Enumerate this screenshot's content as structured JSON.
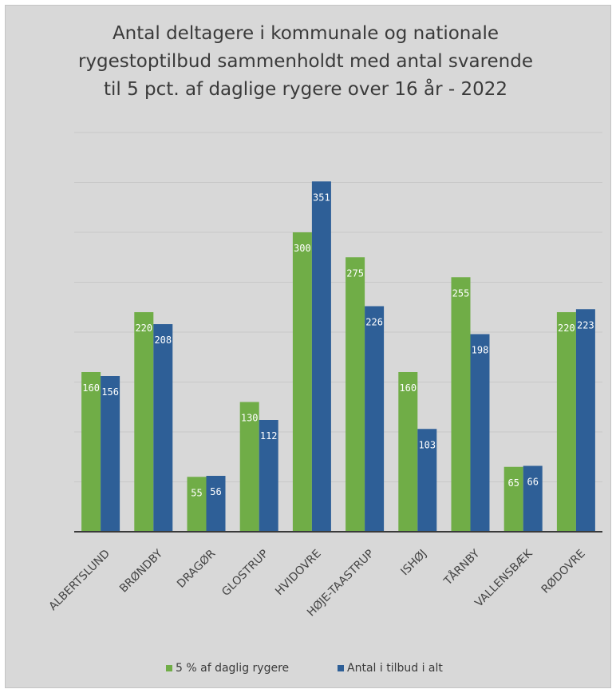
{
  "chart_data": {
    "type": "bar",
    "title_lines": [
      "Antal deltagere i kommunale og nationale",
      "rygestoptilbud sammenholdt med antal svarende",
      "til 5 pct. af daglige rygere over 16 år - 2022"
    ],
    "categories": [
      "ALBERTSLUND",
      "BRØNDBY",
      "DRAGØR",
      "GLOSTRUP",
      "HVIDOVRE",
      "HØJE-TAASTRUP",
      "ISHØJ",
      "TÅRNBY",
      "VALLENSBÆK",
      "RØDOVRE"
    ],
    "series": [
      {
        "name": "5 % af daglig rygere",
        "values": [
          160,
          220,
          55,
          130,
          300,
          275,
          160,
          255,
          65,
          220
        ],
        "color": "#70ad47"
      },
      {
        "name": "Antal i tilbud i alt",
        "values": [
          156,
          208,
          56,
          112,
          351,
          226,
          103,
          198,
          66,
          223
        ],
        "color": "#2e5f97"
      }
    ],
    "ylim": [
      0,
      400
    ],
    "gridlines": true,
    "grid_step": 50,
    "legend_position": "bottom",
    "xlabel": "",
    "ylabel": ""
  }
}
